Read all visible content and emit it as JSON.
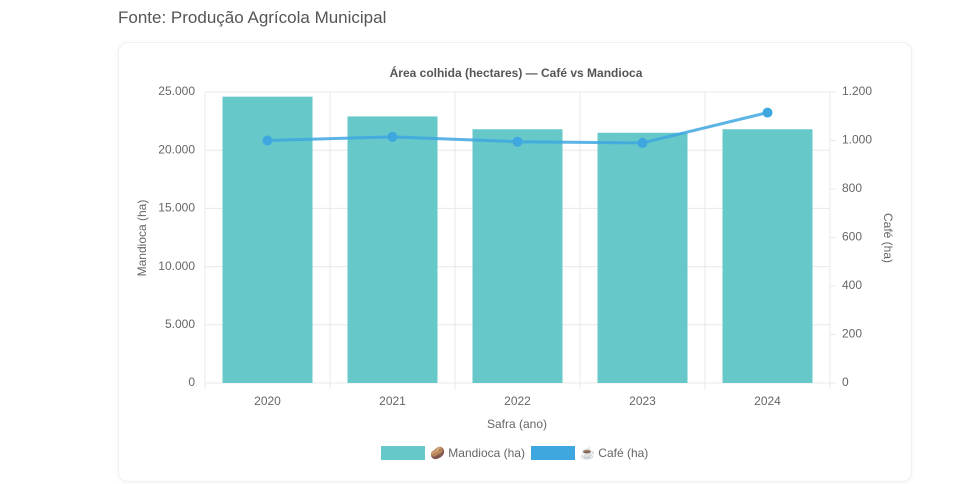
{
  "caption": "Fonte: Produção Agrícola Municipal",
  "chart_data": {
    "type": "bar-line",
    "title": "Área colhida (hectares) — Café vs Mandioca",
    "x_label": "Safra (ano)",
    "y_label": "Mandioca (ha)",
    "y2_label": "Café (ha)",
    "categories": [
      "2020",
      "2021",
      "2022",
      "2023",
      "2024"
    ],
    "series": [
      {
        "name": "🥔 Mandioca (ha)",
        "type": "bar",
        "color": "#66c8c8",
        "values": [
          24600,
          22900,
          21800,
          21500,
          21800
        ]
      },
      {
        "name": "☕ Café (ha)",
        "type": "line",
        "axis": "y2",
        "color": "#3ea7e0",
        "values": [
          1000,
          1015,
          995,
          990,
          1115
        ]
      }
    ],
    "ylim": [
      0,
      25000
    ],
    "yticks": [
      0,
      {
        "value": 5000,
        "label": "5.000"
      },
      {
        "value": 10000,
        "label": "10.000"
      },
      {
        "value": 15000,
        "label": "15.000"
      },
      {
        "value": 20000,
        "label": "20.000"
      },
      {
        "value": 25000,
        "label": "25.000"
      }
    ],
    "y2lim": [
      0,
      1200
    ],
    "y2ticks": [
      0,
      200,
      400,
      600,
      800,
      {
        "value": 1000,
        "label": "1.000"
      },
      {
        "value": 1200,
        "label": "1.200"
      }
    ],
    "grid": true,
    "legend": "bottom"
  }
}
